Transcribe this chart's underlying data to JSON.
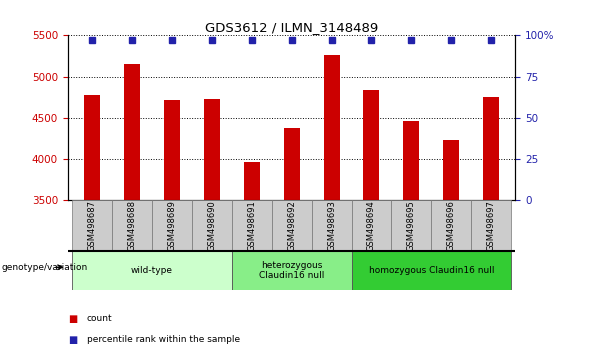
{
  "title": "GDS3612 / ILMN_3148489",
  "samples": [
    "GSM498687",
    "GSM498688",
    "GSM498689",
    "GSM498690",
    "GSM498691",
    "GSM498692",
    "GSM498693",
    "GSM498694",
    "GSM498695",
    "GSM498696",
    "GSM498697"
  ],
  "counts": [
    4780,
    5150,
    4720,
    4730,
    3960,
    4380,
    5260,
    4840,
    4460,
    4230,
    4750
  ],
  "percentile_ranks": [
    97,
    97,
    97,
    97,
    97,
    97,
    97,
    97,
    97,
    97,
    97
  ],
  "bar_color": "#cc0000",
  "percentile_color": "#2222aa",
  "ylim_left": [
    3500,
    5500
  ],
  "ylim_right": [
    0,
    100
  ],
  "yticks_left": [
    3500,
    4000,
    4500,
    5000,
    5500
  ],
  "yticks_right": [
    0,
    25,
    50,
    75,
    100
  ],
  "ytick_right_labels": [
    "0",
    "25",
    "50",
    "75",
    "100%"
  ],
  "groups": [
    {
      "label": "wild-type",
      "start": 0,
      "end": 3,
      "color": "#ccffcc"
    },
    {
      "label": "heterozygous\nClaudin16 null",
      "start": 4,
      "end": 6,
      "color": "#88ee88"
    },
    {
      "label": "homozygous Claudin16 null",
      "start": 7,
      "end": 10,
      "color": "#33cc33"
    }
  ],
  "legend_count_label": "count",
  "legend_percentile_label": "percentile rank within the sample",
  "genotype_label": "genotype/variation",
  "bar_width": 0.4,
  "tick_label_color_left": "#cc0000",
  "tick_label_color_right": "#2222aa",
  "sample_box_color": "#cccccc",
  "sample_box_edge": "#888888"
}
